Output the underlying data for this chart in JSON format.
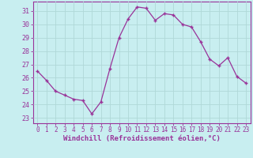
{
  "x": [
    0,
    1,
    2,
    3,
    4,
    5,
    6,
    7,
    8,
    9,
    10,
    11,
    12,
    13,
    14,
    15,
    16,
    17,
    18,
    19,
    20,
    21,
    22,
    23
  ],
  "y": [
    26.5,
    25.8,
    25.0,
    24.7,
    24.4,
    24.3,
    23.3,
    24.2,
    26.7,
    29.0,
    30.4,
    31.3,
    31.2,
    30.3,
    30.8,
    30.7,
    30.0,
    29.8,
    28.7,
    27.4,
    26.9,
    27.5,
    26.1,
    25.6
  ],
  "line_color": "#993399",
  "marker": "+",
  "bg_color": "#c8eef0",
  "grid_color": "#b0d8d8",
  "xlabel": "Windchill (Refroidissement éolien,°C)",
  "ylabel_ticks": [
    23,
    24,
    25,
    26,
    27,
    28,
    29,
    30,
    31
  ],
  "xlim": [
    -0.5,
    23.5
  ],
  "ylim": [
    22.6,
    31.7
  ],
  "tick_color": "#993399",
  "label_color": "#993399",
  "spine_color": "#993399",
  "xtick_fontsize": 5.5,
  "ytick_fontsize": 6.0,
  "xlabel_fontsize": 6.5
}
